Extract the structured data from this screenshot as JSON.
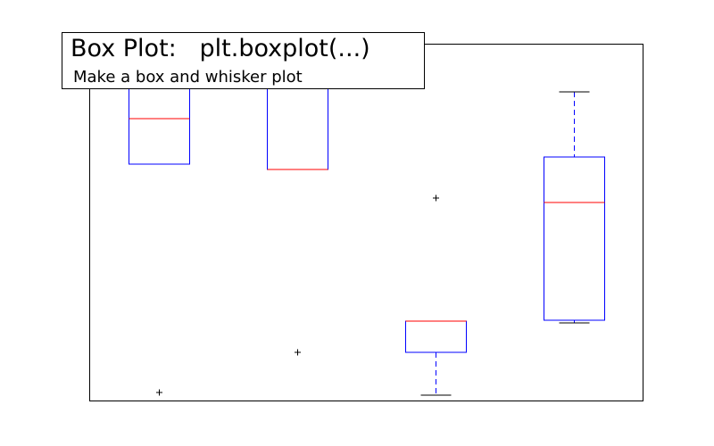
{
  "figure": {
    "title": "Box Plot:   plt.boxplot(...)",
    "subtitle": "Make a box and whisker plot"
  },
  "chart_data": {
    "type": "boxplot",
    "axes_visible_ticks": false,
    "grid": false,
    "ylim": [
      0,
      100
    ],
    "colors": {
      "box": "#0000ff",
      "median": "#ff0000",
      "whisker": "#0000ff",
      "cap": "#000000",
      "flier": "#000000",
      "frame": "#000000"
    },
    "boxes": [
      {
        "whisker_low": 66.5,
        "q1": 66.5,
        "median": 79.25,
        "q3": 100,
        "whisker_high": 100,
        "fliers": [
          2.5
        ]
      },
      {
        "whisker_low": 65,
        "q1": 65,
        "median": 65,
        "q3": 100,
        "whisker_high": 100,
        "fliers": [
          13.75
        ]
      },
      {
        "whisker_low": 1.75,
        "q1": 13.75,
        "median": 22.5,
        "q3": 22.5,
        "whisker_high": 22.5,
        "fliers": [
          57
        ]
      },
      {
        "whisker_low": 22,
        "q1": 22.75,
        "median": 55.75,
        "q3": 68.5,
        "whisker_high": 86.75,
        "fliers": []
      }
    ]
  }
}
